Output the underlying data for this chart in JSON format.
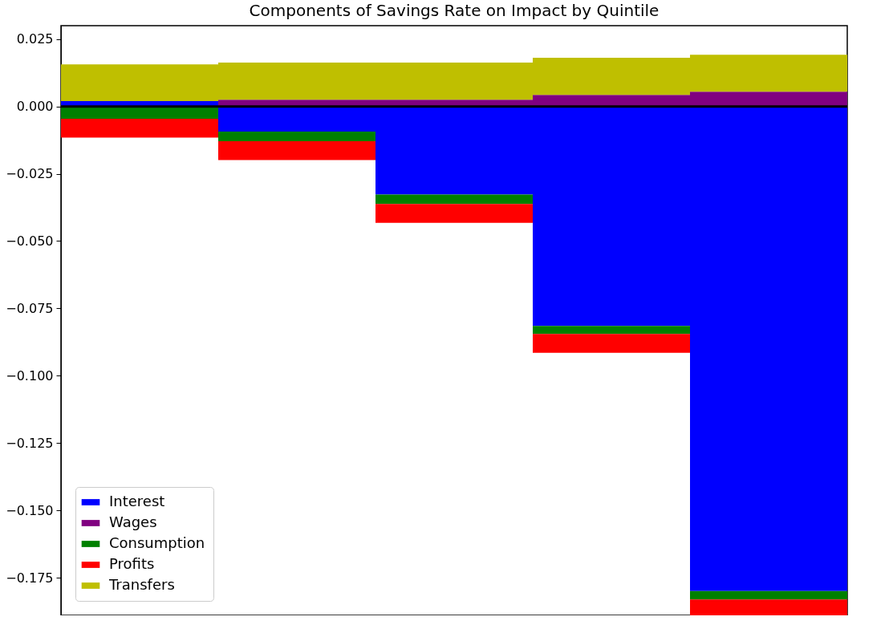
{
  "chart_data": {
    "type": "bar",
    "title": "Components of Savings Rate on Impact by Quintile",
    "stacked": true,
    "categories": [
      null,
      null,
      null,
      null,
      null
    ],
    "series": [
      {
        "name": "Interest",
        "color": "#0000ff",
        "values": [
          0.002,
          -0.0093,
          -0.0327,
          -0.0815,
          -0.18
        ]
      },
      {
        "name": "Wages",
        "color": "#800080",
        "values": [
          0,
          0.0025,
          0.0025,
          0.0043,
          0.0055
        ]
      },
      {
        "name": "Consumption",
        "color": "#008000",
        "values": [
          -0.0046,
          -0.0036,
          -0.0035,
          -0.003,
          -0.0031
        ]
      },
      {
        "name": "Profits",
        "color": "#ff0000",
        "values": [
          -0.007,
          -0.007,
          -0.007,
          -0.007,
          -0.0059
        ]
      },
      {
        "name": "Transfers",
        "color": "#bfbf00",
        "values": [
          0.0136,
          0.0138,
          0.0138,
          0.0138,
          0.0137
        ]
      }
    ],
    "ylim": [
      -0.189,
      0.03
    ],
    "yticks": [
      {
        "value": 0.025,
        "label": "0.025"
      },
      {
        "value": 0,
        "label": "0.000"
      },
      {
        "value": -0.025,
        "label": "−0.025"
      },
      {
        "value": -0.05,
        "label": "−0.050"
      },
      {
        "value": -0.075,
        "label": "−0.075"
      },
      {
        "value": -0.1,
        "label": "−0.100"
      },
      {
        "value": -0.125,
        "label": "−0.125"
      },
      {
        "value": -0.15,
        "label": "−0.150"
      },
      {
        "value": -0.175,
        "label": "−0.175"
      }
    ],
    "ref_lines": [
      {
        "axis": "y",
        "value": 0,
        "color": "#000000"
      }
    ],
    "legend": "bottom left",
    "tick_labels": "y"
  }
}
